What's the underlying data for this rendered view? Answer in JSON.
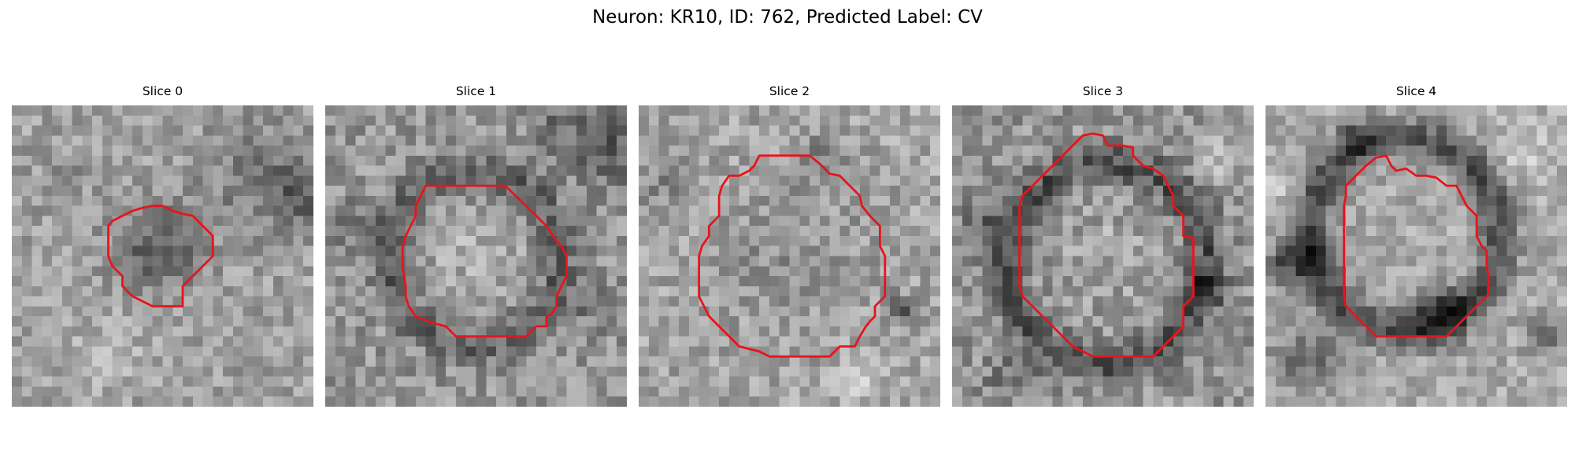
{
  "figure": {
    "title": "Neuron: KR10, ID: 762, Predicted Label: CV"
  },
  "grid_size": 30,
  "colors": {
    "contour": "#e8141b",
    "background": "#ffffff"
  },
  "panels": [
    {
      "title": "Slice 0",
      "seed": 11,
      "base": 160,
      "noise": 34,
      "blobs": [
        {
          "x": 14.8,
          "y": 14.2,
          "r": 4.8,
          "amp": -70,
          "mode": "disk"
        },
        {
          "x": 24.5,
          "y": 7.0,
          "r": 6.0,
          "amp": -45,
          "mode": "disk"
        },
        {
          "x": 29.0,
          "y": 9.0,
          "r": 3.0,
          "amp": -60,
          "mode": "disk"
        },
        {
          "x": 5.0,
          "y": 8.0,
          "r": 2.5,
          "amp": -30,
          "mode": "disk"
        },
        {
          "x": 10.0,
          "y": 25.0,
          "r": 4.0,
          "amp": 25,
          "mode": "disk"
        }
      ],
      "contour": [
        [
          14,
          10
        ],
        [
          15,
          10
        ],
        [
          16,
          10.5
        ],
        [
          17,
          10.8
        ],
        [
          18,
          11
        ],
        [
          19,
          12
        ],
        [
          20,
          13
        ],
        [
          20,
          15
        ],
        [
          19,
          16
        ],
        [
          18,
          17
        ],
        [
          17,
          18
        ],
        [
          17,
          20
        ],
        [
          14,
          20
        ],
        [
          13,
          19.5
        ],
        [
          12,
          19
        ],
        [
          11,
          18
        ],
        [
          11,
          17
        ],
        [
          10,
          16
        ],
        [
          9.6,
          15
        ],
        [
          9.6,
          12
        ],
        [
          10,
          11.5
        ],
        [
          11,
          11
        ],
        [
          12,
          10.5
        ],
        [
          13,
          10.2
        ]
      ]
    },
    {
      "title": "Slice 1",
      "seed": 23,
      "base": 150,
      "noise": 38,
      "blobs": [
        {
          "x": 14.8,
          "y": 15.2,
          "r": 8.6,
          "amp": -55,
          "mode": "ring",
          "w": 1.8
        },
        {
          "x": 14.5,
          "y": 14.5,
          "r": 5.5,
          "amp": 25,
          "mode": "disk"
        },
        {
          "x": 28.0,
          "y": 4.0,
          "r": 4.5,
          "amp": -55,
          "mode": "disk"
        },
        {
          "x": 23.0,
          "y": 2.0,
          "r": 3.0,
          "amp": -35,
          "mode": "disk"
        },
        {
          "x": 3.0,
          "y": 12.0,
          "r": 3.0,
          "amp": -30,
          "mode": "disk"
        },
        {
          "x": 27.0,
          "y": 20.0,
          "r": 2.5,
          "amp": -40,
          "mode": "disk"
        }
      ],
      "contour": [
        [
          10,
          8
        ],
        [
          17.9,
          8
        ],
        [
          21,
          11
        ],
        [
          22,
          12
        ],
        [
          23,
          13.5
        ],
        [
          23.5,
          14
        ],
        [
          24,
          15
        ],
        [
          24,
          17
        ],
        [
          23.5,
          18
        ],
        [
          23,
          19
        ],
        [
          23,
          20
        ],
        [
          22.5,
          20.8
        ],
        [
          22,
          21
        ],
        [
          22,
          22
        ],
        [
          21,
          22
        ],
        [
          20,
          23
        ],
        [
          13,
          23
        ],
        [
          12,
          22
        ],
        [
          10.5,
          21.6
        ],
        [
          9,
          21
        ],
        [
          8.3,
          20
        ],
        [
          8,
          19
        ],
        [
          8,
          18
        ],
        [
          7.7,
          16
        ],
        [
          7.7,
          14
        ],
        [
          8,
          13
        ],
        [
          8.5,
          12
        ],
        [
          9,
          11
        ],
        [
          9,
          10
        ]
      ]
    },
    {
      "title": "Slice 2",
      "seed": 37,
      "base": 165,
      "noise": 36,
      "blobs": [
        {
          "x": 15.0,
          "y": 15.0,
          "r": 9.0,
          "amp": -20,
          "mode": "disk"
        },
        {
          "x": 26.5,
          "y": 20.5,
          "r": 1.6,
          "amp": -100,
          "mode": "disk"
        },
        {
          "x": 2.0,
          "y": 8.0,
          "r": 3.5,
          "amp": -30,
          "mode": "disk"
        },
        {
          "x": 22.0,
          "y": 27.0,
          "r": 3.0,
          "amp": 25,
          "mode": "disk"
        },
        {
          "x": 18.0,
          "y": 5.0,
          "r": 3.0,
          "amp": -25,
          "mode": "disk"
        }
      ],
      "contour": [
        [
          10,
          7
        ],
        [
          11,
          6.5
        ],
        [
          11.5,
          6
        ],
        [
          12,
          5
        ],
        [
          13,
          5
        ],
        [
          14,
          5
        ],
        [
          15,
          5
        ],
        [
          16,
          5
        ],
        [
          17,
          5
        ],
        [
          18,
          5.8
        ],
        [
          19,
          6.8
        ],
        [
          20,
          7
        ],
        [
          21,
          8
        ],
        [
          22,
          9
        ],
        [
          22.2,
          10
        ],
        [
          23,
          11
        ],
        [
          24,
          12
        ],
        [
          24,
          14
        ],
        [
          24.5,
          15
        ],
        [
          24.5,
          19
        ],
        [
          24,
          19.5
        ],
        [
          23.5,
          20
        ],
        [
          23.5,
          21
        ],
        [
          23,
          21.5
        ],
        [
          22.6,
          22
        ],
        [
          22,
          23
        ],
        [
          21.5,
          24
        ],
        [
          20,
          24
        ],
        [
          19,
          25
        ],
        [
          13,
          25
        ],
        [
          12,
          24.5
        ],
        [
          10,
          24
        ],
        [
          8,
          22
        ],
        [
          7,
          21
        ],
        [
          6.5,
          20
        ],
        [
          6,
          19
        ],
        [
          6,
          15
        ],
        [
          6.3,
          14
        ],
        [
          7,
          13
        ],
        [
          7,
          12
        ],
        [
          8,
          11
        ],
        [
          8,
          10
        ],
        [
          8,
          9
        ],
        [
          8.3,
          8
        ],
        [
          9,
          7
        ]
      ]
    },
    {
      "title": "Slice 3",
      "seed": 53,
      "base": 150,
      "noise": 40,
      "blobs": [
        {
          "x": 15.4,
          "y": 15.8,
          "r": 10.0,
          "amp": -70,
          "mode": "ring",
          "w": 2.0
        },
        {
          "x": 15.0,
          "y": 15.0,
          "r": 7.0,
          "amp": 15,
          "mode": "disk"
        },
        {
          "x": 3.0,
          "y": 12.0,
          "r": 2.5,
          "amp": -50,
          "mode": "disk"
        },
        {
          "x": 25.0,
          "y": 18.0,
          "r": 2.2,
          "amp": -45,
          "mode": "disk"
        },
        {
          "x": 27.0,
          "y": 5.0,
          "r": 3.0,
          "amp": 30,
          "mode": "disk"
        },
        {
          "x": 6.0,
          "y": 27.0,
          "r": 3.0,
          "amp": -40,
          "mode": "disk"
        }
      ],
      "contour": [
        [
          11,
          5
        ],
        [
          13,
          3
        ],
        [
          14,
          2.8
        ],
        [
          15,
          3
        ],
        [
          15.5,
          4
        ],
        [
          16,
          4
        ],
        [
          17,
          4
        ],
        [
          18,
          4.2
        ],
        [
          18,
          5
        ],
        [
          19,
          6
        ],
        [
          20,
          6.3
        ],
        [
          21,
          7
        ],
        [
          21.5,
          8
        ],
        [
          22,
          9
        ],
        [
          22,
          10
        ],
        [
          23,
          11
        ],
        [
          23,
          12
        ],
        [
          23,
          13
        ],
        [
          24,
          13.2
        ],
        [
          24,
          19
        ],
        [
          23,
          20
        ],
        [
          23,
          22
        ],
        [
          20,
          25
        ],
        [
          19,
          25
        ],
        [
          18,
          25
        ],
        [
          17,
          25
        ],
        [
          16,
          25
        ],
        [
          14,
          25
        ],
        [
          13,
          24.5
        ],
        [
          12,
          24
        ],
        [
          11,
          23
        ],
        [
          10,
          22
        ],
        [
          9,
          21
        ],
        [
          8,
          20
        ],
        [
          7,
          19
        ],
        [
          6.7,
          18
        ],
        [
          6.7,
          10
        ],
        [
          7,
          9
        ],
        [
          8,
          8
        ],
        [
          9,
          7
        ]
      ]
    },
    {
      "title": "Slice 4",
      "seed": 71,
      "base": 170,
      "noise": 32,
      "blobs": [
        {
          "x": 13.8,
          "y": 12.8,
          "r": 9.5,
          "amp": -90,
          "mode": "ring",
          "w": 2.0
        },
        {
          "x": 5.0,
          "y": 15.0,
          "r": 3.0,
          "amp": -80,
          "mode": "disk"
        },
        {
          "x": 1.5,
          "y": 16.0,
          "r": 2.0,
          "amp": -70,
          "mode": "disk"
        },
        {
          "x": 17.5,
          "y": 21.0,
          "r": 3.0,
          "amp": -90,
          "mode": "disk"
        },
        {
          "x": 9.0,
          "y": 3.0,
          "r": 2.2,
          "amp": -60,
          "mode": "disk"
        },
        {
          "x": 4.0,
          "y": 25.0,
          "r": 4.0,
          "amp": -60,
          "mode": "disk"
        },
        {
          "x": 28.0,
          "y": 23.0,
          "r": 2.5,
          "amp": -45,
          "mode": "disk"
        },
        {
          "x": 26.0,
          "y": 5.0,
          "r": 4.0,
          "amp": 25,
          "mode": "disk"
        },
        {
          "x": 1.0,
          "y": 8.0,
          "r": 2.5,
          "amp": 25,
          "mode": "disk"
        }
      ],
      "contour": [
        [
          8,
          9
        ],
        [
          8,
          8
        ],
        [
          9,
          7
        ],
        [
          10,
          6
        ],
        [
          11,
          5.2
        ],
        [
          12,
          5
        ],
        [
          12.5,
          6
        ],
        [
          13,
          6.5
        ],
        [
          14,
          6.3
        ],
        [
          15,
          7
        ],
        [
          16,
          7
        ],
        [
          17,
          7.2
        ],
        [
          18,
          8
        ],
        [
          19,
          8
        ],
        [
          19.5,
          9
        ],
        [
          20,
          10
        ],
        [
          21,
          11
        ],
        [
          21,
          12
        ],
        [
          21,
          13
        ],
        [
          21.5,
          14
        ],
        [
          22,
          14.5
        ],
        [
          22,
          16
        ],
        [
          22.2,
          17
        ],
        [
          22.2,
          18.8
        ],
        [
          20,
          21
        ],
        [
          19,
          22
        ],
        [
          18,
          23
        ],
        [
          11,
          23
        ],
        [
          10,
          22
        ],
        [
          9,
          21
        ],
        [
          8,
          20
        ],
        [
          7.8,
          19
        ],
        [
          7.8,
          10
        ]
      ]
    }
  ]
}
